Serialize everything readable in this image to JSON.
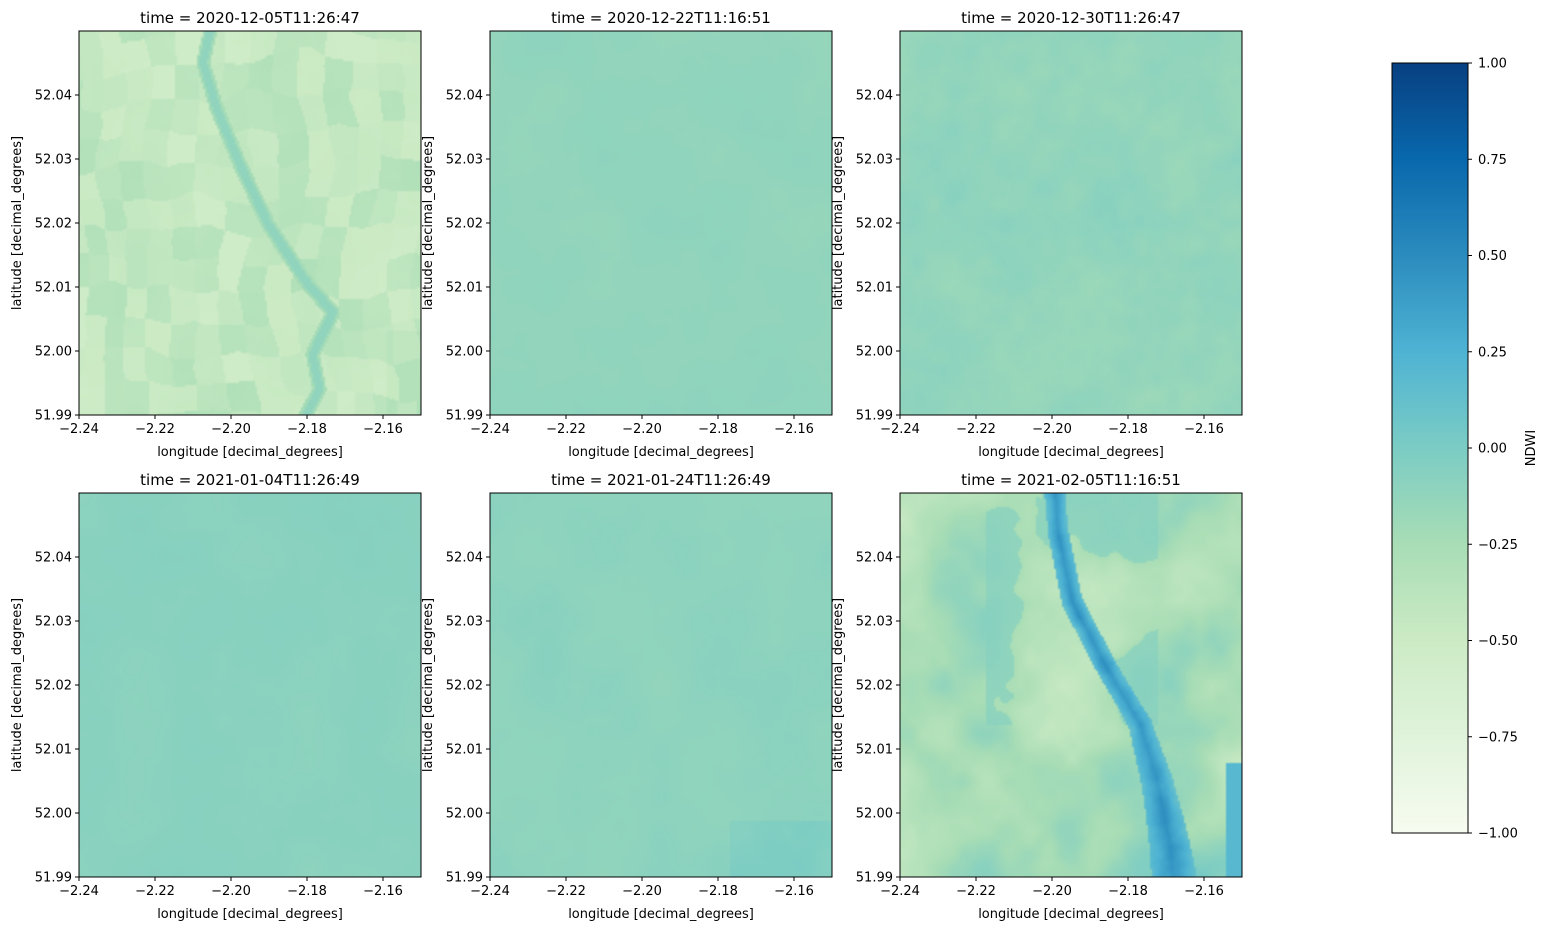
{
  "colors": {
    "axis": "#000000",
    "background": "#ffffff",
    "colormap": "YlGnBu",
    "colormap_stops": [
      "#f7fcf0",
      "#e0f3db",
      "#ccebc5",
      "#a8ddb5",
      "#7bccc4",
      "#4eb3d3",
      "#2b8cbe",
      "#0868ac",
      "#084081"
    ]
  },
  "chart_data": [
    {
      "type": "heatmap",
      "title": "time = 2020-12-05T11:26:47",
      "xlabel": "longitude [decimal_degrees]",
      "ylabel": "latitude [decimal_degrees]",
      "xlim": [
        -2.24,
        -2.15
      ],
      "ylim": [
        51.99,
        52.05
      ],
      "xticks": [
        "−2.24",
        "−2.22",
        "−2.20",
        "−2.18",
        "−2.16"
      ],
      "yticks": [
        "51.99",
        "52.00",
        "52.01",
        "52.02",
        "52.03",
        "52.04"
      ],
      "base_ndwi": -0.42,
      "variation": 0.12,
      "features": "fields-and-river"
    },
    {
      "type": "heatmap",
      "title": "time = 2020-12-22T11:16:51",
      "xlabel": "longitude [decimal_degrees]",
      "ylabel": "latitude [decimal_degrees]",
      "xlim": [
        -2.24,
        -2.15
      ],
      "ylim": [
        51.99,
        52.05
      ],
      "xticks": [
        "−2.24",
        "−2.22",
        "−2.20",
        "−2.18",
        "−2.16"
      ],
      "yticks": [
        "51.99",
        "52.00",
        "52.01",
        "52.02",
        "52.03",
        "52.04"
      ],
      "base_ndwi": -0.12,
      "variation": 0.04,
      "features": "cloud-uniform"
    },
    {
      "type": "heatmap",
      "title": "time = 2020-12-30T11:26:47",
      "xlabel": "longitude [decimal_degrees]",
      "ylabel": "latitude [decimal_degrees]",
      "xlim": [
        -2.24,
        -2.15
      ],
      "ylim": [
        51.99,
        52.05
      ],
      "xticks": [
        "−2.24",
        "−2.22",
        "−2.20",
        "−2.18",
        "−2.16"
      ],
      "yticks": [
        "51.99",
        "52.00",
        "52.01",
        "52.02",
        "52.03",
        "52.04"
      ],
      "base_ndwi": -0.13,
      "variation": 0.06,
      "features": "cloud-textured"
    },
    {
      "type": "heatmap",
      "title": "time = 2021-01-04T11:26:49",
      "xlabel": "longitude [decimal_degrees]",
      "ylabel": "latitude [decimal_degrees]",
      "xlim": [
        -2.24,
        -2.15
      ],
      "ylim": [
        51.99,
        52.05
      ],
      "xticks": [
        "−2.24",
        "−2.22",
        "−2.20",
        "−2.18",
        "−2.16"
      ],
      "yticks": [
        "51.99",
        "52.00",
        "52.01",
        "52.02",
        "52.03",
        "52.04"
      ],
      "base_ndwi": -0.08,
      "variation": 0.03,
      "features": "cloud-uniform"
    },
    {
      "type": "heatmap",
      "title": "time = 2021-01-24T11:26:49",
      "xlabel": "longitude [decimal_degrees]",
      "ylabel": "latitude [decimal_degrees]",
      "xlim": [
        -2.24,
        -2.15
      ],
      "ylim": [
        51.99,
        52.05
      ],
      "xticks": [
        "−2.24",
        "−2.22",
        "−2.20",
        "−2.18",
        "−2.16"
      ],
      "yticks": [
        "51.99",
        "52.00",
        "52.01",
        "52.02",
        "52.03",
        "52.04"
      ],
      "base_ndwi": -0.1,
      "variation": 0.04,
      "features": "cloud-bluish-corner"
    },
    {
      "type": "heatmap",
      "title": "time = 2021-02-05T11:16:51",
      "xlabel": "longitude [decimal_degrees]",
      "ylabel": "latitude [decimal_degrees]",
      "xlim": [
        -2.24,
        -2.15
      ],
      "ylim": [
        51.99,
        52.05
      ],
      "xticks": [
        "−2.24",
        "−2.22",
        "−2.20",
        "−2.18",
        "−2.16"
      ],
      "yticks": [
        "51.99",
        "52.00",
        "52.01",
        "52.02",
        "52.03",
        "52.04"
      ],
      "base_ndwi": -0.35,
      "variation": 0.2,
      "features": "flood-water"
    }
  ],
  "colorbar": {
    "label": "NDWI",
    "range": [
      -1.0,
      1.0
    ],
    "ticks": [
      "1.00",
      "0.75",
      "0.50",
      "0.25",
      "0.00",
      "−0.25",
      "−0.50",
      "−0.75",
      "−1.00"
    ]
  }
}
